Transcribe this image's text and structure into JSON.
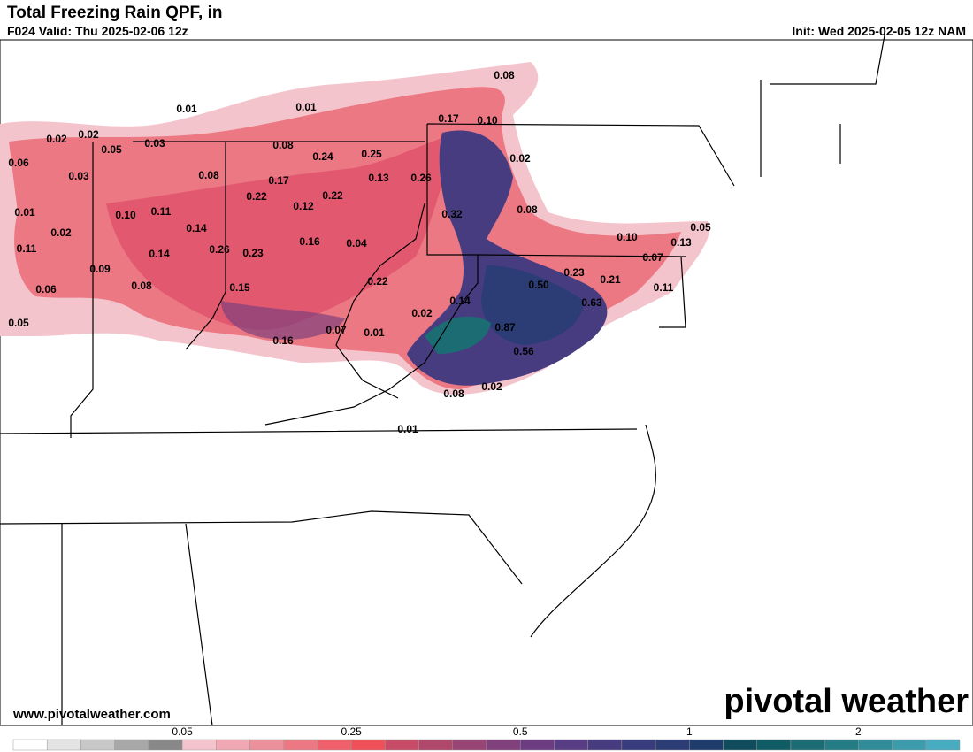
{
  "header": {
    "title": "Total Freezing Rain QPF, in",
    "valid": "F024 Valid: Thu 2025-02-06 12z",
    "init": "Init: Wed 2025-02-05 12z NAM"
  },
  "map_labels": [
    "0.08",
    "0.01",
    "0.01",
    "0.17",
    "0.10",
    "0.02",
    "0.02",
    "0.05",
    "0.03",
    "0.08",
    "0.24",
    "0.25",
    "0.02",
    "0.06",
    "0.03",
    "0.08",
    "0.17",
    "0.13",
    "0.26",
    "0.22",
    "0.22",
    "0.12",
    "0.01",
    "0.10",
    "0.11",
    "0.32",
    "0.08",
    "0.02",
    "0.14",
    "0.16",
    "0.04",
    "0.10",
    "0.05",
    "0.13",
    "0.11",
    "0.14",
    "0.26",
    "0.23",
    "0.07",
    "0.09",
    "0.23",
    "0.22",
    "0.50",
    "0.21",
    "0.06",
    "0.08",
    "0.15",
    "0.11",
    "0.14",
    "0.63",
    "0.02",
    "0.05",
    "0.87",
    "0.07",
    "0.01",
    "0.16",
    "0.56",
    "0.02",
    "0.08",
    "0.01"
  ],
  "footer": {
    "website": "www.pivotalweather.com",
    "logo": "pivotal weather"
  },
  "colorbar": {
    "colors": [
      "#ffffff",
      "#e4e4e4",
      "#c8c8c8",
      "#a8a8a8",
      "#888888",
      "#f4c4cc",
      "#f0a8b4",
      "#ec909c",
      "#ec7884",
      "#f0606c",
      "#f05058",
      "#c84c68",
      "#b0486c",
      "#984474",
      "#80407c",
      "#6c3c80",
      "#583c84",
      "#483c80",
      "#383c7c",
      "#2c3c74",
      "#203c6c",
      "#104c5c",
      "#105c64",
      "#1c6c74",
      "#247c84",
      "#308c98",
      "#3c9cac",
      "#48acc0"
    ],
    "labels": [
      {
        "value": 0.05,
        "label": "0.05"
      },
      {
        "value": 0.25,
        "label": "0.25"
      },
      {
        "value": 0.5,
        "label": "0.5"
      },
      {
        "value": 1,
        "label": "1"
      },
      {
        "value": 2,
        "label": "2"
      }
    ]
  }
}
